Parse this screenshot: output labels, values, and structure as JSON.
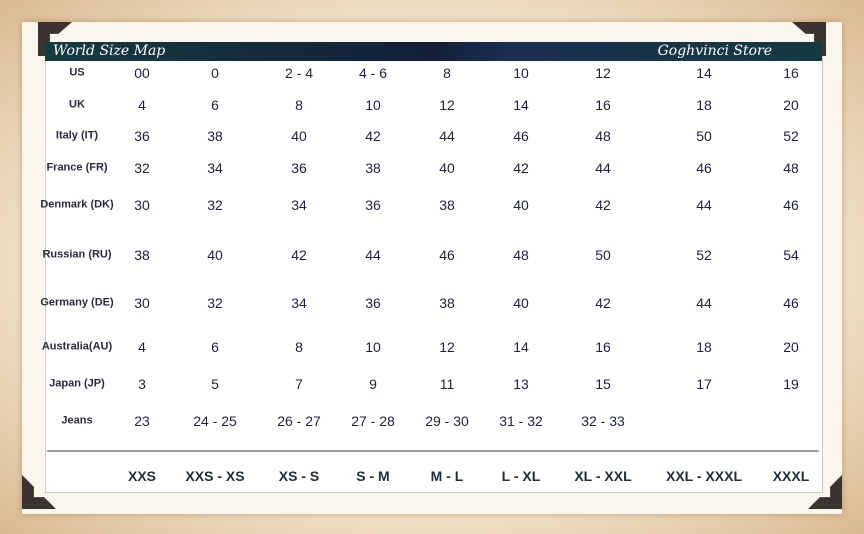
{
  "header": {
    "title": "World Size Map",
    "store": "Goghvinci Store"
  },
  "rows": [
    {
      "label": "US",
      "values": [
        "00",
        "0",
        "2 - 4",
        "4 - 6",
        "8",
        "10",
        "12",
        "14",
        "16"
      ]
    },
    {
      "label": "UK",
      "values": [
        "4",
        "6",
        "8",
        "10",
        "12",
        "14",
        "16",
        "18",
        "20"
      ]
    },
    {
      "label": "Italy (IT)",
      "values": [
        "36",
        "38",
        "40",
        "42",
        "44",
        "46",
        "48",
        "50",
        "52"
      ]
    },
    {
      "label": "France (FR)",
      "values": [
        "32",
        "34",
        "36",
        "38",
        "40",
        "42",
        "44",
        "46",
        "48"
      ]
    },
    {
      "label": "Denmark (DK)",
      "values": [
        "30",
        "32",
        "34",
        "36",
        "38",
        "40",
        "42",
        "44",
        "46"
      ]
    },
    {
      "label": "Russian (RU)",
      "values": [
        "38",
        "40",
        "42",
        "44",
        "46",
        "48",
        "50",
        "52",
        "54"
      ]
    },
    {
      "label": "Germany (DE)",
      "values": [
        "30",
        "32",
        "34",
        "36",
        "38",
        "40",
        "42",
        "44",
        "46"
      ]
    },
    {
      "label": "Australia(AU)",
      "values": [
        "4",
        "6",
        "8",
        "10",
        "12",
        "14",
        "16",
        "18",
        "20"
      ]
    },
    {
      "label": "Japan (JP)",
      "values": [
        "3",
        "5",
        "7",
        "9",
        "11",
        "13",
        "15",
        "17",
        "19"
      ]
    },
    {
      "label": "Jeans",
      "values": [
        "23",
        "24 - 25",
        "26 - 27",
        "27 - 28",
        "29 - 30",
        "31 - 32",
        "32 - 33",
        "",
        ""
      ]
    }
  ],
  "sizes": [
    "XXS",
    "XXS - XS",
    "XS - S",
    "S - M",
    "M - L",
    "L - XL",
    "XL - XXL",
    "XXL - XXXL",
    "XXXL"
  ]
}
